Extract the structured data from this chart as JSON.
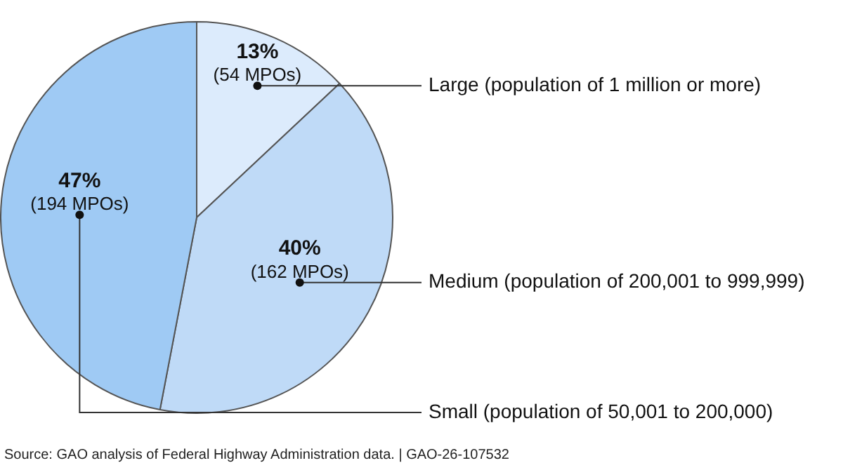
{
  "chart_data": {
    "type": "pie",
    "categories": [
      "Large (population of 1 million or more)",
      "Medium (population of 200,001 to 999,999)",
      "Small (population of 50,001 to 200,000)"
    ],
    "values": [
      13,
      40,
      47
    ],
    "colors": [
      "#dcebfc",
      "#bfdaf7",
      "#9fcaf4"
    ],
    "value_labels": [
      "13%\n(54 MPOs)",
      "40%\n(162 MPOs)",
      "47%\n(194 MPOs)"
    ],
    "legend": false,
    "annotations": [
      "Source: GAO analysis of Federal Highway Administration data.  |  GAO-26-107532"
    ]
  }
}
